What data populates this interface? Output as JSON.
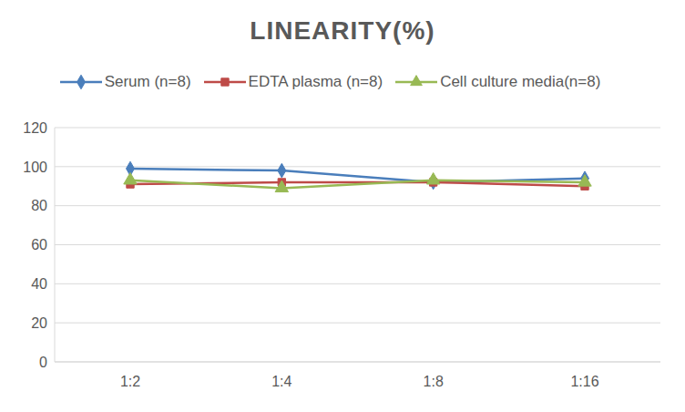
{
  "chart_data": {
    "type": "line",
    "title": "LINEARITY(%)",
    "categories": [
      "1:2",
      "1:4",
      "1:8",
      "1:16"
    ],
    "series": [
      {
        "name": "Serum (n=8)",
        "color": "#4a7ebb",
        "marker": "diamond",
        "values": [
          99,
          98,
          92,
          94
        ]
      },
      {
        "name": "EDTA plasma (n=8)",
        "color": "#be4b48",
        "marker": "square",
        "values": [
          91,
          92,
          92,
          90
        ]
      },
      {
        "name": "Cell culture media(n=8)",
        "color": "#98b954",
        "marker": "triangle",
        "values": [
          93,
          89,
          93,
          92
        ]
      }
    ],
    "ylim": [
      0,
      120
    ],
    "yticks": [
      0,
      20,
      40,
      60,
      80,
      100,
      120
    ],
    "grid": true,
    "legend": "top"
  }
}
